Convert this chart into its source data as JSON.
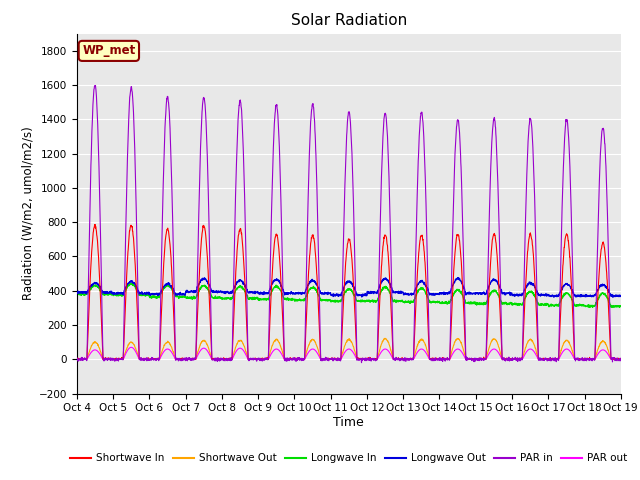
{
  "title": "Solar Radiation",
  "xlabel": "Time",
  "ylabel": "Radiation (W/m2, umol/m2/s)",
  "ylim": [
    -200,
    1900
  ],
  "yticks": [
    -200,
    0,
    200,
    400,
    600,
    800,
    1000,
    1200,
    1400,
    1600,
    1800
  ],
  "x_labels": [
    "Oct 4",
    "Oct 5",
    "Oct 6",
    "Oct 7",
    "Oct 8",
    "Oct 9",
    "Oct 10",
    "Oct 11",
    "Oct 12",
    "Oct 13",
    "Oct 14",
    "Oct 15",
    "Oct 16",
    "Oct 17",
    "Oct 18",
    "Oct 19"
  ],
  "n_days": 15,
  "background_color": "#e8e8e8",
  "box_label": "WP_met",
  "box_facecolor": "#ffffc0",
  "box_edgecolor": "#8B0000",
  "colors": {
    "shortwave_in": "#ff0000",
    "shortwave_out": "#ffa500",
    "longwave_in": "#00dd00",
    "longwave_out": "#0000dd",
    "par_in": "#9900cc",
    "par_out": "#ff00ff"
  },
  "legend_labels": [
    "Shortwave In",
    "Shortwave Out",
    "Longwave In",
    "Longwave Out",
    "PAR in",
    "PAR out"
  ],
  "shortwave_in_peaks": [
    780,
    780,
    760,
    780,
    760,
    730,
    725,
    700,
    725,
    725,
    730,
    730,
    730,
    730,
    680
  ],
  "shortwave_out_peaks": [
    100,
    100,
    100,
    110,
    110,
    115,
    115,
    115,
    120,
    115,
    120,
    120,
    115,
    110,
    105
  ],
  "par_in_peaks": [
    1600,
    1590,
    1530,
    1530,
    1510,
    1485,
    1490,
    1445,
    1435,
    1440,
    1400,
    1405,
    1405,
    1400,
    1355
  ],
  "par_out_peaks": [
    55,
    70,
    60,
    65,
    65,
    60,
    60,
    60,
    60,
    60,
    60,
    60,
    60,
    60,
    55
  ],
  "longwave_in_base": [
    380,
    375,
    365,
    360,
    355,
    350,
    345,
    340,
    340,
    335,
    330,
    325,
    320,
    315,
    310
  ],
  "longwave_in_day_bump": [
    50,
    65,
    65,
    70,
    70,
    75,
    75,
    70,
    80,
    80,
    75,
    75,
    75,
    70,
    75
  ],
  "longwave_out_base": [
    390,
    385,
    380,
    395,
    390,
    385,
    385,
    375,
    390,
    380,
    385,
    385,
    375,
    370,
    370
  ],
  "longwave_out_day_bump": [
    55,
    70,
    60,
    75,
    70,
    80,
    75,
    80,
    80,
    75,
    85,
    80,
    70,
    70,
    65
  ]
}
